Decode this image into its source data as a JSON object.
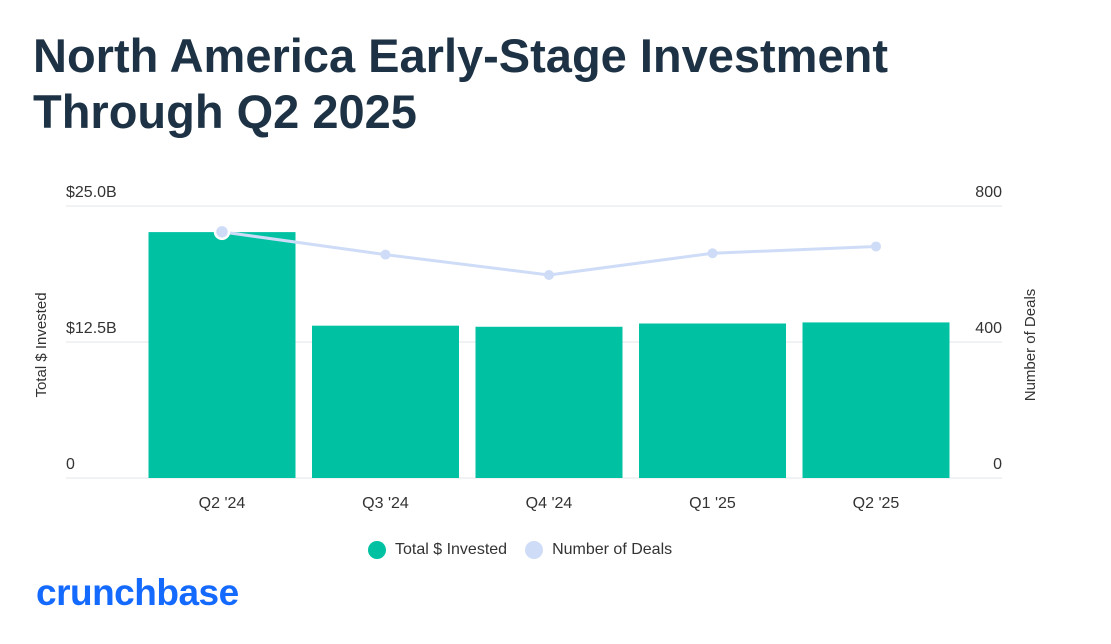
{
  "title_line1": "North America Early-Stage Investment",
  "title_line2": "Through Q2 2025",
  "logo_text": "crunchbase",
  "colors": {
    "bar": "#00c2a3",
    "line": "#cfdcf7",
    "title": "#1d3244",
    "logo": "#146aff"
  },
  "chart_data": {
    "type": "bar",
    "title": "North America Early-Stage Investment Through Q2 2025",
    "categories": [
      "Q2 '24",
      "Q3 '24",
      "Q4 '24",
      "Q1 '25",
      "Q2 '25"
    ],
    "series": [
      {
        "name": "Total $ Invested",
        "type": "bar",
        "axis": "left",
        "values": [
          22.6,
          14.0,
          13.9,
          14.2,
          14.3
        ]
      },
      {
        "name": "Number of Deals",
        "type": "line",
        "axis": "right",
        "values": [
          724,
          657,
          597,
          661,
          681
        ]
      }
    ],
    "ylabel": "Total $ Invested",
    "y2label": "Number of Deals",
    "ylim": [
      0,
      25
    ],
    "y2lim": [
      0,
      800
    ],
    "yticks": [
      "0",
      "$12.5B",
      "$25.0B"
    ],
    "y2ticks": [
      "0",
      "400",
      "800"
    ],
    "legend": [
      "Total $ Invested",
      "Number of Deals"
    ],
    "legend_position": "bottom"
  }
}
